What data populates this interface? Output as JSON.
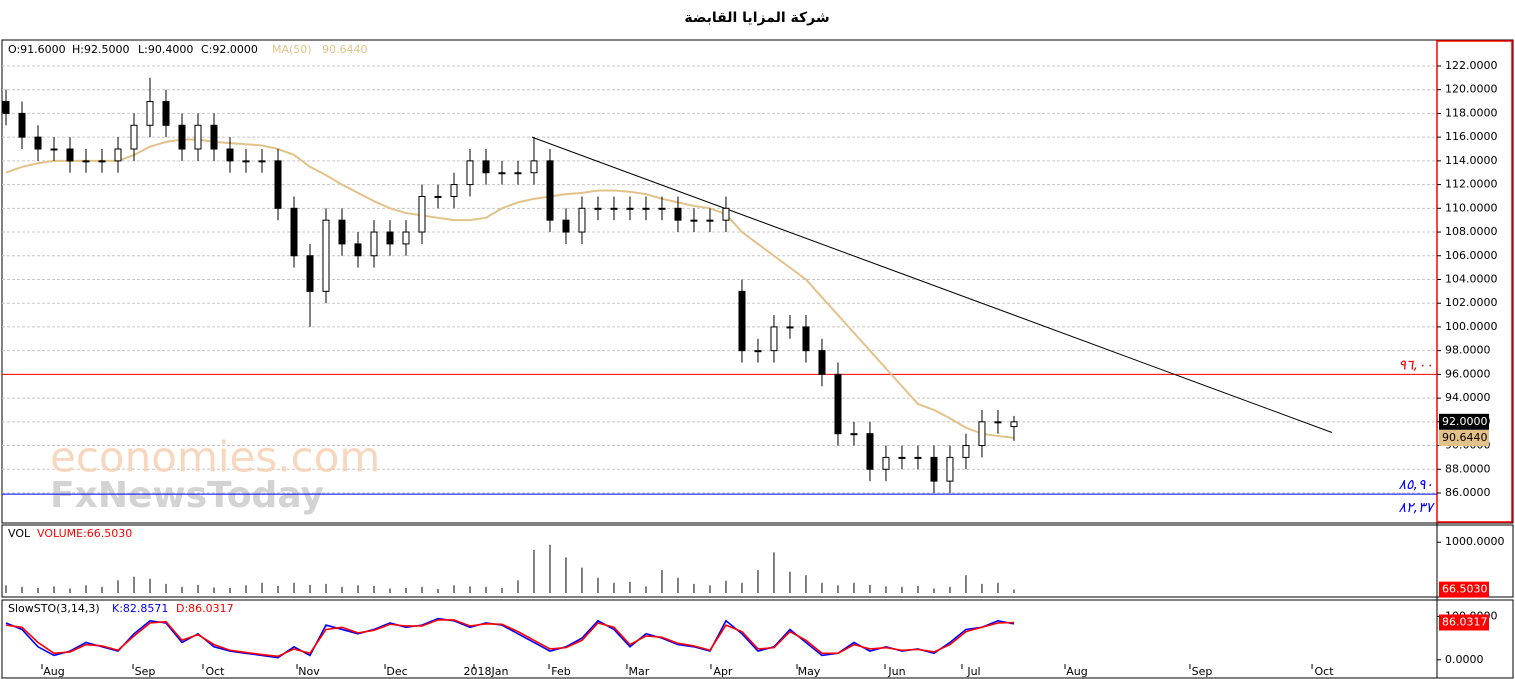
{
  "chart_data": [
    {
      "type": "candlestick",
      "title": "شركة المزايا القابضة",
      "ohlc_labels": [
        "O:91.6000",
        "H:92.5000",
        "L:90.4000",
        "C:92.0000"
      ],
      "open": [
        119,
        118,
        116,
        115,
        115,
        114,
        114,
        114,
        115,
        117,
        119,
        117,
        115,
        117,
        115,
        114,
        114,
        114,
        110,
        106,
        103,
        109,
        107,
        106,
        108,
        107,
        108,
        111,
        111,
        112,
        114,
        113,
        113,
        113,
        114,
        109,
        108,
        110,
        110,
        110,
        110,
        110,
        110,
        109,
        109,
        109,
        103,
        98,
        98,
        100,
        100,
        98,
        96,
        91,
        91,
        88,
        89,
        89,
        89,
        87,
        89,
        90,
        92,
        91.6
      ],
      "high": [
        120,
        119,
        117,
        116,
        116,
        115,
        115,
        116,
        118,
        121,
        120,
        118,
        118,
        118,
        116,
        115,
        115,
        115,
        111,
        107,
        110,
        110,
        108,
        109,
        109,
        109,
        112,
        112,
        113,
        115,
        115,
        114,
        114,
        116,
        115,
        110,
        111,
        111,
        111,
        111,
        111,
        111,
        111,
        110,
        110,
        111,
        104,
        99,
        101,
        101,
        101,
        99,
        97,
        92,
        92,
        90,
        90,
        90,
        90,
        90,
        91,
        93,
        93,
        92.5
      ],
      "low": [
        117,
        115,
        114,
        114,
        113,
        113,
        113,
        113,
        114,
        116,
        116,
        114,
        114,
        114,
        113,
        113,
        113,
        109,
        105,
        100,
        102,
        106,
        105,
        105,
        106,
        106,
        107,
        110,
        110,
        111,
        112,
        112,
        112,
        112,
        108,
        107,
        107,
        109,
        109,
        109,
        109,
        109,
        108,
        108,
        108,
        108,
        97,
        97,
        97,
        99,
        97,
        95,
        90,
        90,
        87,
        87,
        88,
        88,
        86,
        86,
        88,
        89,
        91,
        90.4
      ],
      "close": [
        118,
        116,
        115,
        115,
        114,
        114,
        114,
        115,
        117,
        119,
        117,
        115,
        117,
        115,
        114,
        114,
        114,
        110,
        106,
        103,
        109,
        107,
        106,
        108,
        107,
        108,
        111,
        111,
        112,
        114,
        113,
        113,
        113,
        114,
        109,
        108,
        110,
        110,
        110,
        110,
        110,
        110,
        109,
        109,
        109,
        110,
        98,
        98,
        100,
        100,
        98,
        96,
        91,
        91,
        88,
        89,
        89,
        89,
        87,
        89,
        90,
        92,
        92,
        92
      ],
      "last_label": "92.0000",
      "series": [
        {
          "name": "MA(50)",
          "color": "#e3c28a",
          "last_label": "90.6440",
          "values": [
            113,
            113.5,
            113.8,
            114,
            114,
            114,
            114,
            114,
            114.5,
            115.2,
            115.6,
            115.8,
            115.8,
            115.6,
            115.5,
            115.4,
            115.3,
            115,
            114.5,
            113.5,
            112.8,
            112,
            111.3,
            110.6,
            110,
            109.6,
            109.4,
            109.2,
            109,
            109,
            109.2,
            110,
            110.5,
            110.8,
            111,
            111.2,
            111.3,
            111.5,
            111.5,
            111.4,
            111.2,
            110.8,
            110.5,
            110.2,
            110,
            109.5,
            108,
            107,
            106,
            105,
            104,
            102.5,
            101,
            99.5,
            98,
            96.5,
            95,
            93.5,
            93,
            92.3,
            91.5,
            91,
            90.8,
            90.644
          ]
        }
      ],
      "trendline": {
        "x": [
          32.875,
          82.875
        ],
        "y": [
          116,
          91.1
        ]
      },
      "hlines": [
        {
          "value": 96,
          "color": "#ff0000",
          "label": "٩٦,٠٠"
        },
        {
          "value": 85.9,
          "color": "#0000ff",
          "label": "٨٥,٩٠"
        }
      ],
      "annotations": [
        {
          "text": "٨٢,٣٧",
          "color": "#0000ff"
        }
      ],
      "watermark": [
        "economies.com",
        "FxNewsToday"
      ],
      "xlim": [
        -0.25,
        89.44
      ],
      "ylim": [
        83.47,
        124.19
      ],
      "yticks": [
        {
          "value": 86,
          "label": "86.0000"
        },
        {
          "value": 88,
          "label": "88.0000"
        },
        {
          "value": 90,
          "label": "90.0000"
        },
        {
          "value": 92,
          "label": "92.0000"
        },
        {
          "value": 94,
          "label": "94.0000"
        },
        {
          "value": 96,
          "label": "96.0000"
        },
        {
          "value": 98,
          "label": "98.0000"
        },
        {
          "value": 100,
          "label": "100.0000"
        },
        {
          "value": 102,
          "label": "102.0000"
        },
        {
          "value": 104,
          "label": "104.0000"
        },
        {
          "value": 106,
          "label": "106.0000"
        },
        {
          "value": 108,
          "label": "108.0000"
        },
        {
          "value": 110,
          "label": "110.0000"
        },
        {
          "value": 112,
          "label": "112.0000"
        },
        {
          "value": 114,
          "label": "114.0000"
        },
        {
          "value": 116,
          "label": "116.0000"
        },
        {
          "value": 118,
          "label": "118.0000"
        },
        {
          "value": 120,
          "label": "120.0000"
        },
        {
          "value": 122,
          "label": "122.0000"
        }
      ],
      "grid": true
    },
    {
      "type": "bar",
      "panel_label": "VOL",
      "legend": "VOLUME:66.5030",
      "last_label": "66.5030",
      "color": "#000000",
      "values": [
        150,
        120,
        100,
        130,
        90,
        150,
        120,
        250,
        320,
        280,
        180,
        120,
        160,
        110,
        100,
        150,
        200,
        140,
        200,
        160,
        180,
        120,
        150,
        140,
        90,
        100,
        120,
        80,
        150,
        130,
        120,
        100,
        250,
        850,
        950,
        700,
        500,
        300,
        200,
        220,
        130,
        450,
        300,
        180,
        150,
        240,
        200,
        450,
        800,
        420,
        350,
        200,
        150,
        200,
        160,
        130,
        120,
        140,
        90,
        120,
        350,
        180,
        200,
        66.503
      ],
      "xlim": [
        -0.25,
        89.44
      ],
      "ylim": [
        0,
        1300
      ],
      "yticks": [
        {
          "value": 1000,
          "label": "1000.0000"
        }
      ]
    },
    {
      "type": "line",
      "panel_label": "SlowSTO(3,14,3)",
      "series": [
        {
          "name": "K:82.8571",
          "color": "#0000ff",
          "values": [
            85,
            70,
            30,
            10,
            20,
            40,
            30,
            20,
            60,
            90,
            85,
            40,
            60,
            30,
            20,
            15,
            10,
            5,
            30,
            10,
            80,
            70,
            60,
            70,
            85,
            75,
            80,
            95,
            90,
            75,
            85,
            80,
            60,
            40,
            20,
            30,
            50,
            90,
            70,
            30,
            60,
            50,
            35,
            30,
            20,
            90,
            60,
            20,
            30,
            70,
            40,
            10,
            15,
            40,
            20,
            30,
            20,
            25,
            15,
            40,
            70,
            75,
            90,
            82.8571
          ]
        },
        {
          "name": "D:86.0317",
          "color": "#ff0000",
          "last_label": "86.0317",
          "values": [
            80,
            75,
            40,
            15,
            18,
            35,
            32,
            22,
            55,
            85,
            88,
            45,
            58,
            35,
            22,
            17,
            12,
            8,
            25,
            15,
            70,
            75,
            62,
            68,
            82,
            78,
            78,
            92,
            92,
            78,
            83,
            82,
            65,
            45,
            25,
            28,
            45,
            85,
            75,
            35,
            55,
            52,
            38,
            32,
            22,
            80,
            65,
            25,
            28,
            65,
            45,
            15,
            15,
            35,
            25,
            28,
            22,
            24,
            18,
            35,
            65,
            75,
            85,
            86.0317
          ]
        }
      ],
      "xlim": [
        -0.25,
        89.44
      ],
      "ylim": [
        -19,
        138
      ],
      "yticks": [
        {
          "value": 100,
          "label": "100.0000"
        },
        {
          "value": 0,
          "label": "0.0000"
        }
      ],
      "xticks": [
        {
          "value": 2.25,
          "label": "Aug"
        },
        {
          "value": 7.94,
          "label": "Sep"
        },
        {
          "value": 12.31,
          "label": "Oct"
        },
        {
          "value": 18.19,
          "label": "Nov"
        },
        {
          "value": 23.69,
          "label": "Dec"
        },
        {
          "value": 29.25,
          "label": "2018Jan"
        },
        {
          "value": 33.94,
          "label": "Feb"
        },
        {
          "value": 38.81,
          "label": "Mar"
        },
        {
          "value": 44.06,
          "label": "Apr"
        },
        {
          "value": 49.44,
          "label": "May"
        },
        {
          "value": 54.94,
          "label": "Jun"
        },
        {
          "value": 59.75,
          "label": "Jul"
        },
        {
          "value": 66.19,
          "label": "Aug"
        },
        {
          "value": 74,
          "label": "Sep"
        },
        {
          "value": 81.63,
          "label": "Oct"
        }
      ]
    }
  ]
}
